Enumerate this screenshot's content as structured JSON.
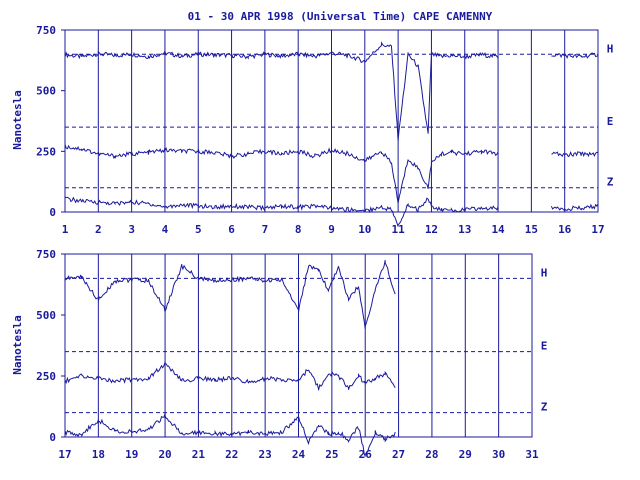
{
  "title": "01 - 30 APR 1998 (Universal Time) CAPE CAMENNY",
  "ylabel": "Nanotesla",
  "color": "#1a1a9c",
  "chart_data": [
    {
      "type": "line",
      "panel": "top",
      "ylabel": "Nanotesla",
      "xlim": [
        1,
        17
      ],
      "ylim": [
        0,
        750
      ],
      "x_ticks": [
        "1",
        "2",
        "3",
        "4",
        "5",
        "6",
        "7",
        "8",
        "9",
        "10",
        "11",
        "12",
        "13",
        "14",
        "15",
        "16",
        "17"
      ],
      "y_ticks": [
        "0",
        "250",
        "500",
        "750"
      ],
      "reference_lines": [
        {
          "name": "H",
          "y": 650
        },
        {
          "name": "E",
          "y": 350
        },
        {
          "name": "Z",
          "y": 100
        }
      ],
      "data_gap": [
        14,
        15.6
      ],
      "series": [
        {
          "name": "H",
          "x": [
            1,
            1.5,
            2,
            2.5,
            3,
            3.5,
            4,
            4.5,
            5,
            5.5,
            6,
            6.5,
            7,
            7.5,
            8,
            8.5,
            9,
            9.5,
            10,
            10.5,
            10.8,
            11,
            11.3,
            11.6,
            11.9,
            12,
            12.3,
            12.6,
            13,
            13.5,
            14,
            15.6,
            16,
            16.5,
            17
          ],
          "y": [
            648,
            640,
            652,
            645,
            650,
            640,
            655,
            642,
            650,
            648,
            645,
            640,
            650,
            643,
            650,
            642,
            655,
            645,
            620,
            690,
            680,
            300,
            650,
            600,
            320,
            650,
            640,
            645,
            640,
            648,
            640,
            648,
            645,
            640,
            650
          ]
        },
        {
          "name": "E",
          "x": [
            1,
            1.5,
            2,
            2.5,
            3,
            3.5,
            4,
            4.5,
            5,
            5.5,
            6,
            6.5,
            7,
            7.5,
            8,
            8.5,
            9,
            9.5,
            10,
            10.5,
            10.8,
            11,
            11.3,
            11.6,
            11.9,
            12,
            12.3,
            12.6,
            13,
            13.5,
            14,
            15.6,
            16,
            16.5,
            17
          ],
          "y": [
            270,
            260,
            240,
            230,
            240,
            245,
            255,
            250,
            250,
            245,
            230,
            240,
            250,
            240,
            250,
            230,
            255,
            240,
            210,
            250,
            200,
            40,
            220,
            180,
            100,
            200,
            240,
            245,
            240,
            250,
            240,
            240,
            235,
            240,
            240
          ]
        },
        {
          "name": "Z",
          "x": [
            1,
            1.5,
            2,
            2.5,
            3,
            3.5,
            4,
            4.5,
            5,
            5.5,
            6,
            6.5,
            7,
            7.5,
            8,
            8.5,
            9,
            9.5,
            10,
            10.5,
            10.8,
            11,
            11.3,
            11.6,
            11.9,
            12,
            12.3,
            12.6,
            13,
            13.5,
            14,
            15.6,
            16,
            16.5,
            17
          ],
          "y": [
            55,
            45,
            40,
            35,
            40,
            35,
            20,
            30,
            25,
            20,
            25,
            20,
            15,
            25,
            20,
            25,
            15,
            10,
            5,
            20,
            10,
            -60,
            30,
            10,
            60,
            20,
            10,
            5,
            10,
            15,
            15,
            20,
            15,
            15,
            25
          ]
        }
      ]
    },
    {
      "type": "line",
      "panel": "bottom",
      "ylabel": "Nanotesla",
      "xlim": [
        17,
        31
      ],
      "ylim": [
        0,
        750
      ],
      "x_ticks": [
        "17",
        "18",
        "19",
        "20",
        "21",
        "22",
        "23",
        "24",
        "25",
        "26",
        "27",
        "28",
        "29",
        "30",
        "31"
      ],
      "y_ticks": [
        "0",
        "250",
        "500",
        "750"
      ],
      "reference_lines": [
        {
          "name": "H",
          "y": 650
        },
        {
          "name": "E",
          "y": 350
        },
        {
          "name": "Z",
          "y": 100
        }
      ],
      "series": [
        {
          "name": "H",
          "x": [
            17,
            17.5,
            18,
            18.5,
            19,
            19.5,
            20,
            20.5,
            21,
            21.5,
            22,
            22.5,
            23,
            23.5,
            24,
            24.3,
            24.6,
            24.9,
            25.2,
            25.5,
            25.8,
            26,
            26.3,
            26.6,
            26.9
          ],
          "y": [
            650,
            655,
            560,
            640,
            645,
            640,
            520,
            700,
            650,
            640,
            645,
            650,
            640,
            645,
            520,
            700,
            680,
            600,
            700,
            560,
            620,
            450,
            600,
            720,
            580
          ]
        },
        {
          "name": "E",
          "x": [
            17,
            17.5,
            18,
            18.5,
            19,
            19.5,
            20,
            20.5,
            21,
            21.5,
            22,
            22.5,
            23,
            23.5,
            24,
            24.3,
            24.6,
            24.9,
            25.2,
            25.5,
            25.8,
            26,
            26.3,
            26.6,
            26.9
          ],
          "y": [
            230,
            250,
            240,
            230,
            235,
            240,
            300,
            230,
            240,
            235,
            240,
            225,
            240,
            235,
            230,
            280,
            200,
            260,
            250,
            200,
            250,
            220,
            240,
            260,
            200
          ]
        },
        {
          "name": "Z",
          "x": [
            17,
            17.5,
            18,
            18.5,
            19,
            19.5,
            20,
            20.5,
            21,
            21.5,
            22,
            22.5,
            23,
            23.5,
            24,
            24.3,
            24.6,
            24.9,
            25.2,
            25.5,
            25.8,
            26,
            26.3,
            26.6,
            26.9
          ],
          "y": [
            20,
            10,
            70,
            25,
            20,
            30,
            90,
            10,
            20,
            15,
            10,
            20,
            15,
            20,
            80,
            -20,
            50,
            10,
            20,
            -10,
            40,
            -80,
            20,
            -10,
            15
          ]
        }
      ]
    }
  ]
}
